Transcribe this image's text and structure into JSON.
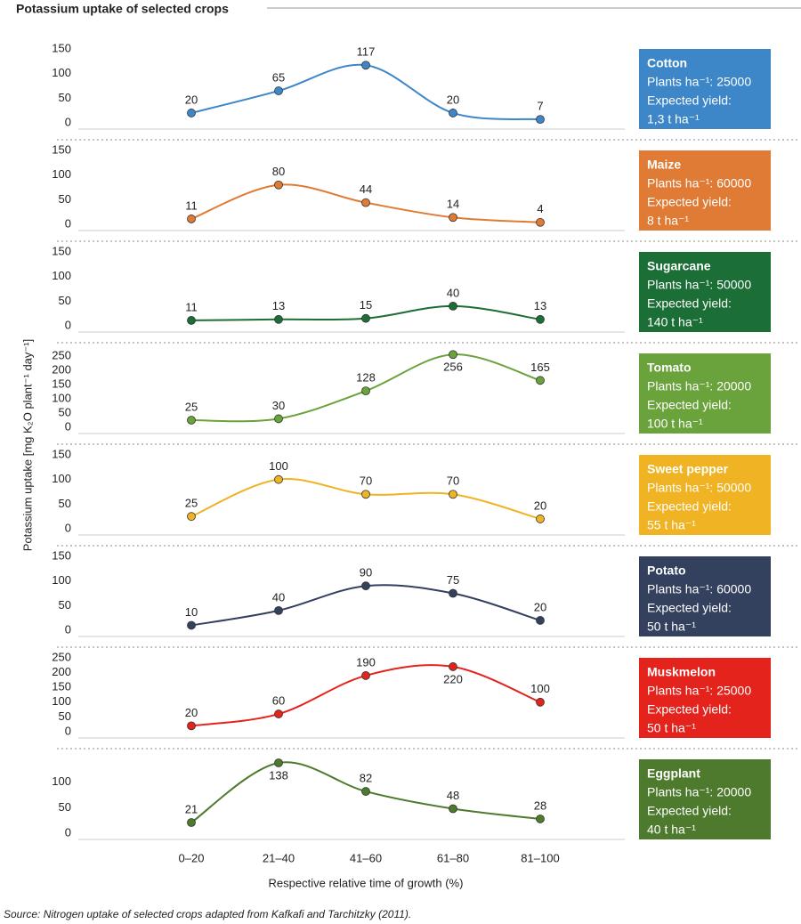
{
  "title": "Potassium uptake of selected crops",
  "y_label": "Potassium uptake [mg K₂O plant⁻¹ day⁻¹]",
  "x_label": "Respective relative time of growth (%)",
  "categories": [
    "0–20",
    "21–40",
    "41–60",
    "61–80",
    "81–100"
  ],
  "source": "Source: Nitrogen uptake of selected crops adapted from Kafkafi and Tarchitzky (2011).",
  "chart_data": [
    {
      "type": "line",
      "series": [
        {
          "name": "Cotton",
          "color": "#3d87c9",
          "values": [
            20,
            65,
            117,
            20,
            7
          ]
        }
      ],
      "ylim": [
        0,
        150
      ],
      "yticks": [
        0,
        50,
        100,
        150
      ],
      "plants": "Plants ha⁻¹: 25000",
      "yield_label": "Expected yield:",
      "yield": "1,3 t ha⁻¹"
    },
    {
      "type": "line",
      "series": [
        {
          "name": "Maize",
          "color": "#e07b35",
          "values": [
            11,
            80,
            44,
            14,
            4
          ]
        }
      ],
      "ylim": [
        0,
        150
      ],
      "yticks": [
        0,
        50,
        100,
        150
      ],
      "plants": "Plants ha⁻¹: 60000",
      "yield_label": "Expected yield:",
      "yield": "8 t ha⁻¹"
    },
    {
      "type": "line",
      "series": [
        {
          "name": "Sugarcane",
          "color": "#1b6e35",
          "values": [
            11,
            13,
            15,
            40,
            13
          ]
        }
      ],
      "ylim": [
        0,
        150
      ],
      "yticks": [
        0,
        50,
        100,
        150
      ],
      "plants": "Plants ha⁻¹: 50000",
      "yield_label": "Expected yield:",
      "yield": "140 t ha⁻¹"
    },
    {
      "type": "line",
      "series": [
        {
          "name": "Tomato",
          "color": "#6aa23c",
          "values": [
            25,
            30,
            128,
            256,
            165
          ]
        }
      ],
      "ylim": [
        0,
        260
      ],
      "yticks": [
        0,
        50,
        100,
        150,
        200,
        250
      ],
      "plants": "Plants ha⁻¹: 20000",
      "yield_label": "Expected yield:",
      "yield": "100 t ha⁻¹"
    },
    {
      "type": "line",
      "series": [
        {
          "name": "Sweet pepper",
          "color": "#f0b323",
          "values": [
            25,
            100,
            70,
            70,
            20
          ]
        }
      ],
      "ylim": [
        0,
        150
      ],
      "yticks": [
        0,
        50,
        100,
        150
      ],
      "plants": "Plants ha⁻¹: 50000",
      "yield_label": "Expected yield:",
      "yield": "55 t ha⁻¹"
    },
    {
      "type": "line",
      "series": [
        {
          "name": "Potato",
          "color": "#33405e",
          "values": [
            10,
            40,
            90,
            75,
            20
          ]
        }
      ],
      "ylim": [
        0,
        150
      ],
      "yticks": [
        0,
        50,
        100,
        150
      ],
      "plants": "Plants ha⁻¹: 60000",
      "yield_label": "Expected yield:",
      "yield": "50 t ha⁻¹"
    },
    {
      "type": "line",
      "series": [
        {
          "name": "Muskmelon",
          "color": "#e3231c",
          "values": [
            20,
            60,
            190,
            220,
            100
          ]
        }
      ],
      "ylim": [
        0,
        250
      ],
      "yticks": [
        0,
        50,
        100,
        150,
        200,
        250
      ],
      "plants": "Plants ha⁻¹: 25000",
      "yield_label": "Expected yield:",
      "yield": "50 t ha⁻¹"
    },
    {
      "type": "line",
      "series": [
        {
          "name": "Eggplant",
          "color": "#4e7a2e",
          "values": [
            21,
            138,
            82,
            48,
            28
          ]
        }
      ],
      "ylim": [
        0,
        145
      ],
      "yticks": [
        0,
        50,
        100
      ],
      "plants": "Plants ha⁻¹: 20000",
      "yield_label": "Expected yield:",
      "yield": "40 t ha⁻¹"
    }
  ]
}
